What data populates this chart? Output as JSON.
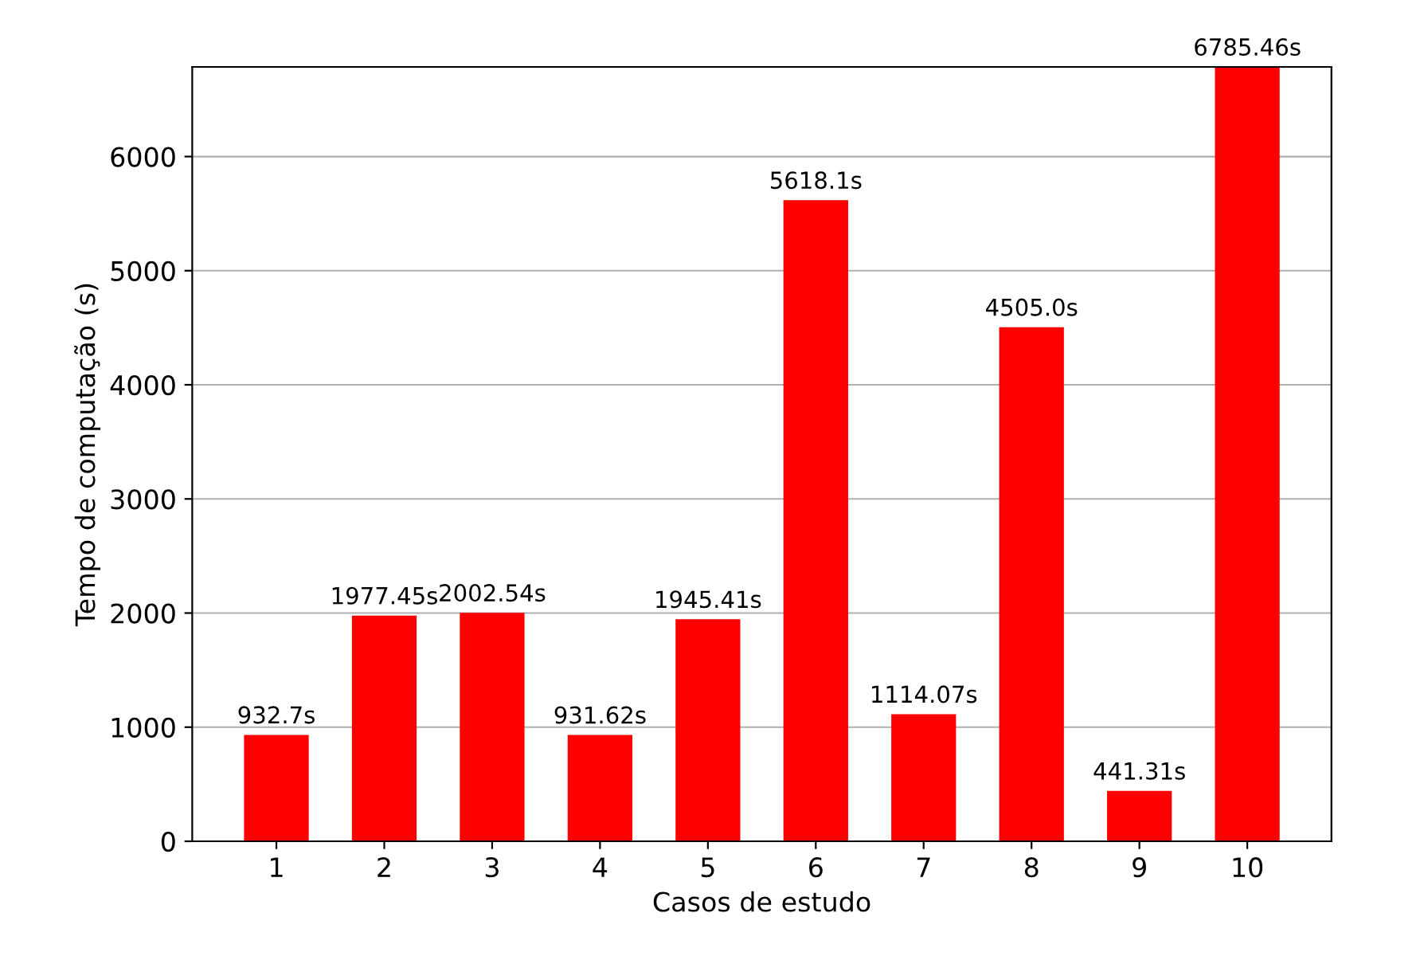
{
  "chart_data": {
    "type": "bar",
    "xlabel": "Casos de estudo",
    "ylabel": "Tempo de computação (s)",
    "categories": [
      "1",
      "2",
      "3",
      "4",
      "5",
      "6",
      "7",
      "8",
      "9",
      "10"
    ],
    "values": [
      932.7,
      1977.45,
      2002.54,
      931.62,
      1945.41,
      5618.1,
      1114.07,
      4505.0,
      441.31,
      6785.46
    ],
    "value_labels": [
      "932.7s",
      "1977.45s",
      "2002.54s",
      "931.62s",
      "1945.41s",
      "5618.1s",
      "1114.07s",
      "4505.0s",
      "441.31s",
      "6785.46s"
    ],
    "color": "#ff0000",
    "ylim": [
      0,
      6785.46
    ],
    "yticks": [
      0,
      1000,
      2000,
      3000,
      4000,
      5000,
      6000
    ],
    "grid": "y"
  }
}
